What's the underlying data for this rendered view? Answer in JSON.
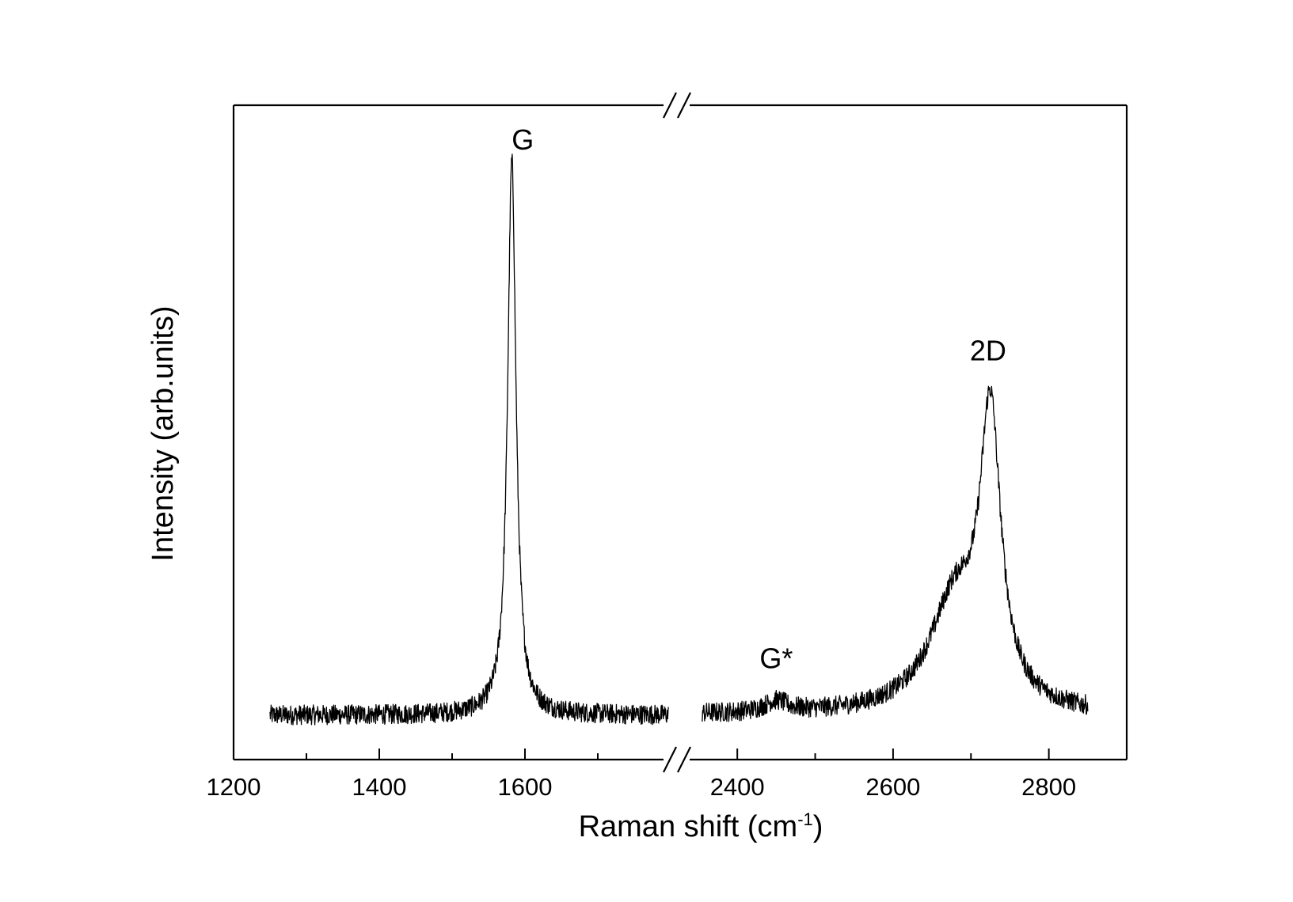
{
  "chart_data": {
    "type": "line",
    "title": "",
    "xlabel": {
      "text": "Raman shift (cm",
      "superscript": "-1",
      "suffix": ")"
    },
    "ylabel": "Intensity (arb.units)",
    "x_axis": {
      "broken": true,
      "segments": [
        {
          "range": [
            1200,
            1800
          ],
          "major_ticks": [
            1200,
            1400,
            1600
          ],
          "minor_ticks": [
            1300,
            1500,
            1700
          ]
        },
        {
          "range": [
            2350,
            2900
          ],
          "major_ticks": [
            2400,
            2600,
            2800
          ],
          "minor_ticks": [
            2500,
            2700,
            2900
          ]
        }
      ]
    },
    "y_axis": {
      "ticks": [],
      "units": "arb.units"
    },
    "ylim": [
      -0.08,
      1.1
    ],
    "grid": false,
    "legend": "none",
    "series": [
      {
        "segment": 0,
        "x_range": [
          1250,
          1797
        ],
        "baseline": 0.0,
        "noise": 0.018,
        "peaks": [
          {
            "center": 1582,
            "height": 1.0,
            "width": 7
          }
        ]
      },
      {
        "segment": 1,
        "x_range": [
          2355,
          2850
        ],
        "baseline": 0.0,
        "noise": 0.018,
        "peaks": [
          {
            "center": 2450,
            "height": 0.02,
            "width": 18
          },
          {
            "center": 2680,
            "height": 0.2,
            "width": 40
          },
          {
            "center": 2725,
            "height": 0.5,
            "width": 16
          }
        ]
      }
    ],
    "annotations": [
      {
        "text": "G",
        "x": 1597,
        "y": 1.02
      },
      {
        "text": "2D",
        "x": 2722,
        "y": 0.64
      },
      {
        "text": "G*",
        "x": 2450,
        "y": 0.085
      }
    ],
    "line_color": "#000000"
  }
}
